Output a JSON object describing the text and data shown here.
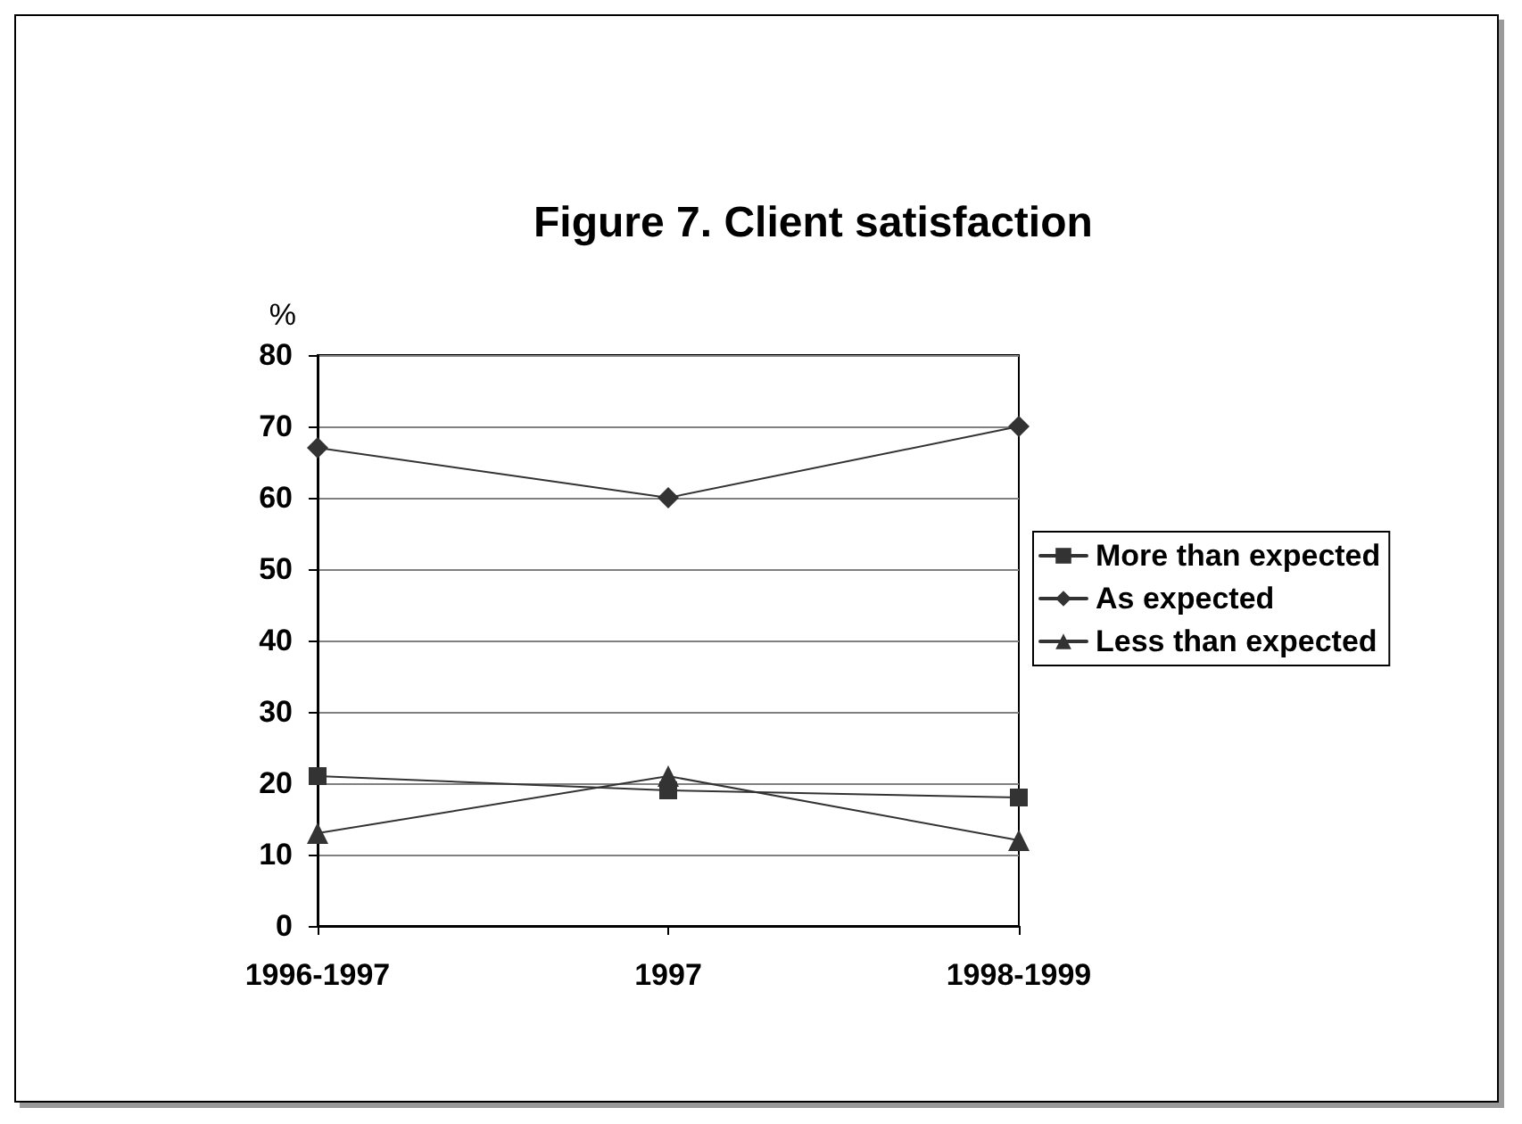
{
  "chart_data": {
    "type": "line",
    "title": "Figure 7. Client satisfaction",
    "ylabel": "%",
    "categories": [
      "1996-1997",
      "1997",
      "1998-1999"
    ],
    "series": [
      {
        "name": "More than expected",
        "color": "#333333",
        "marker": "square",
        "values": [
          21,
          19,
          18
        ]
      },
      {
        "name": "As expected",
        "color": "#333333",
        "marker": "diamond",
        "values": [
          67,
          60,
          70
        ]
      },
      {
        "name": "Less than expected",
        "color": "#333333",
        "marker": "triangle",
        "values": [
          13,
          21,
          12
        ]
      }
    ],
    "ylim": [
      0,
      80
    ],
    "yticks": [
      0,
      10,
      20,
      30,
      40,
      50,
      60,
      70,
      80
    ],
    "grid": "y",
    "legend": "right",
    "line_style": "solid"
  }
}
